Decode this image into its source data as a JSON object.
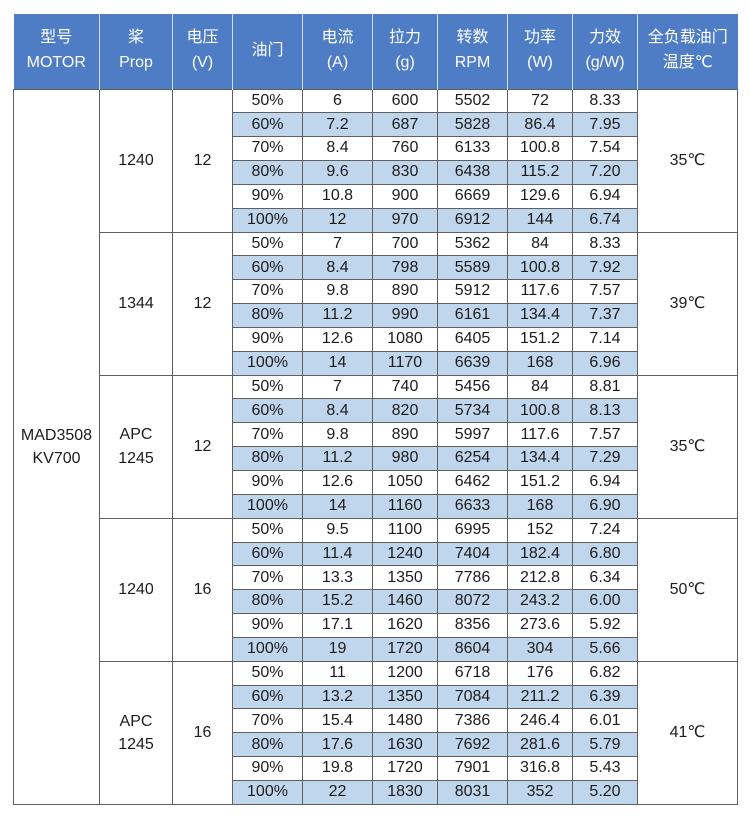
{
  "colors": {
    "header_bg": "#4e7dc5",
    "stripe_row_bg": "#c0d6ed",
    "grid_border": "#5f5f5f",
    "header_text": "#ffffff",
    "body_text": "#1c1c1c"
  },
  "table": {
    "headers": [
      {
        "key": "motor",
        "line1": "型号",
        "line2": "MOTOR"
      },
      {
        "key": "prop",
        "line1": "桨",
        "line2": "Prop"
      },
      {
        "key": "voltage",
        "line1": "电压",
        "line2": "(V)"
      },
      {
        "key": "throttle",
        "line1": "油门",
        "line2": ""
      },
      {
        "key": "current",
        "line1": "电流",
        "line2": "(A)"
      },
      {
        "key": "thrust",
        "line1": "拉力",
        "line2": "(g)"
      },
      {
        "key": "rpm",
        "line1": "转数",
        "line2": "RPM"
      },
      {
        "key": "power",
        "line1": "功率",
        "line2": "(W)"
      },
      {
        "key": "efficiency",
        "line1": "力效",
        "line2": "(g/W)"
      },
      {
        "key": "temp",
        "line1": "全负载油门",
        "line2": "温度℃"
      }
    ],
    "model_lines": [
      "MAD3508",
      "KV700"
    ],
    "groups": [
      {
        "prop_lines": [
          "1240"
        ],
        "voltage": "12",
        "temp": "35℃",
        "rows": [
          [
            "50%",
            "6",
            "600",
            "5502",
            "72",
            "8.33"
          ],
          [
            "60%",
            "7.2",
            "687",
            "5828",
            "86.4",
            "7.95"
          ],
          [
            "70%",
            "8.4",
            "760",
            "6133",
            "100.8",
            "7.54"
          ],
          [
            "80%",
            "9.6",
            "830",
            "6438",
            "115.2",
            "7.20"
          ],
          [
            "90%",
            "10.8",
            "900",
            "6669",
            "129.6",
            "6.94"
          ],
          [
            "100%",
            "12",
            "970",
            "6912",
            "144",
            "6.74"
          ]
        ]
      },
      {
        "prop_lines": [
          "1344"
        ],
        "voltage": "12",
        "temp": "39℃",
        "rows": [
          [
            "50%",
            "7",
            "700",
            "5362",
            "84",
            "8.33"
          ],
          [
            "60%",
            "8.4",
            "798",
            "5589",
            "100.8",
            "7.92"
          ],
          [
            "70%",
            "9.8",
            "890",
            "5912",
            "117.6",
            "7.57"
          ],
          [
            "80%",
            "11.2",
            "990",
            "6161",
            "134.4",
            "7.37"
          ],
          [
            "90%",
            "12.6",
            "1080",
            "6405",
            "151.2",
            "7.14"
          ],
          [
            "100%",
            "14",
            "1170",
            "6639",
            "168",
            "6.96"
          ]
        ]
      },
      {
        "prop_lines": [
          "APC",
          "1245"
        ],
        "voltage": "12",
        "temp": "35℃",
        "rows": [
          [
            "50%",
            "7",
            "740",
            "5456",
            "84",
            "8.81"
          ],
          [
            "60%",
            "8.4",
            "820",
            "5734",
            "100.8",
            "8.13"
          ],
          [
            "70%",
            "9.8",
            "890",
            "5997",
            "117.6",
            "7.57"
          ],
          [
            "80%",
            "11.2",
            "980",
            "6254",
            "134.4",
            "7.29"
          ],
          [
            "90%",
            "12.6",
            "1050",
            "6462",
            "151.2",
            "6.94"
          ],
          [
            "100%",
            "14",
            "1160",
            "6633",
            "168",
            "6.90"
          ]
        ]
      },
      {
        "prop_lines": [
          "1240"
        ],
        "voltage": "16",
        "temp": "50℃",
        "rows": [
          [
            "50%",
            "9.5",
            "1100",
            "6995",
            "152",
            "7.24"
          ],
          [
            "60%",
            "11.4",
            "1240",
            "7404",
            "182.4",
            "6.80"
          ],
          [
            "70%",
            "13.3",
            "1350",
            "7786",
            "212.8",
            "6.34"
          ],
          [
            "80%",
            "15.2",
            "1460",
            "8072",
            "243.2",
            "6.00"
          ],
          [
            "90%",
            "17.1",
            "1620",
            "8356",
            "273.6",
            "5.92"
          ],
          [
            "100%",
            "19",
            "1720",
            "8604",
            "304",
            "5.66"
          ]
        ]
      },
      {
        "prop_lines": [
          "APC",
          "1245"
        ],
        "voltage": "16",
        "temp": "41℃",
        "rows": [
          [
            "50%",
            "11",
            "1200",
            "6718",
            "176",
            "6.82"
          ],
          [
            "60%",
            "13.2",
            "1350",
            "7084",
            "211.2",
            "6.39"
          ],
          [
            "70%",
            "15.4",
            "1480",
            "7386",
            "246.4",
            "6.01"
          ],
          [
            "80%",
            "17.6",
            "1630",
            "7692",
            "281.6",
            "5.79"
          ],
          [
            "90%",
            "19.8",
            "1720",
            "7901",
            "316.8",
            "5.43"
          ],
          [
            "100%",
            "22",
            "1830",
            "8031",
            "352",
            "5.20"
          ]
        ]
      }
    ]
  }
}
